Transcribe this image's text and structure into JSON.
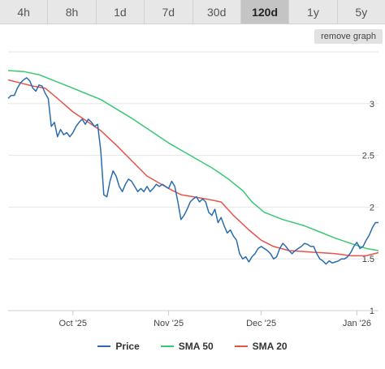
{
  "tabs": [
    {
      "label": "4h",
      "active": false
    },
    {
      "label": "8h",
      "active": false
    },
    {
      "label": "1d",
      "active": false
    },
    {
      "label": "7d",
      "active": false
    },
    {
      "label": "30d",
      "active": false
    },
    {
      "label": "120d",
      "active": true
    },
    {
      "label": "1y",
      "active": false
    },
    {
      "label": "5y",
      "active": false
    }
  ],
  "remove_graph_label": "remove graph",
  "chart_data": {
    "type": "line",
    "title": "",
    "xlabel": "",
    "ylabel": "",
    "x_range": [
      "2025-09-10",
      "2026-01-08"
    ],
    "x_ticks": [
      {
        "date": "2025-10-01",
        "label": "Oct '25"
      },
      {
        "date": "2025-11-01",
        "label": "Nov '25"
      },
      {
        "date": "2025-12-01",
        "label": "Dec '25"
      },
      {
        "date": "2026-01-01",
        "label": "Jan '26"
      }
    ],
    "ylim": [
      1,
      3.5
    ],
    "y_ticks": [
      1,
      1.5,
      2,
      2.5,
      3
    ],
    "y_tick_labels": [
      "1",
      "1.5",
      "2",
      "2.5",
      "3"
    ],
    "grid": "horizontal",
    "legend": "bottom",
    "series": [
      {
        "name": "Price",
        "color": "#2b6cb0",
        "points": [
          [
            "2025-09-10",
            3.05
          ],
          [
            "2025-09-11",
            3.08
          ],
          [
            "2025-09-12",
            3.08
          ],
          [
            "2025-09-13",
            3.15
          ],
          [
            "2025-09-14",
            3.2
          ],
          [
            "2025-09-15",
            3.23
          ],
          [
            "2025-09-16",
            3.25
          ],
          [
            "2025-09-17",
            3.22
          ],
          [
            "2025-09-18",
            3.15
          ],
          [
            "2025-09-19",
            3.12
          ],
          [
            "2025-09-20",
            3.18
          ],
          [
            "2025-09-21",
            3.17
          ],
          [
            "2025-09-22",
            3.1
          ],
          [
            "2025-09-23",
            3.05
          ],
          [
            "2025-09-24",
            2.78
          ],
          [
            "2025-09-25",
            2.82
          ],
          [
            "2025-09-26",
            2.68
          ],
          [
            "2025-09-27",
            2.75
          ],
          [
            "2025-09-28",
            2.7
          ],
          [
            "2025-09-29",
            2.72
          ],
          [
            "2025-09-30",
            2.68
          ],
          [
            "2025-10-01",
            2.72
          ],
          [
            "2025-10-02",
            2.78
          ],
          [
            "2025-10-03",
            2.82
          ],
          [
            "2025-10-04",
            2.85
          ],
          [
            "2025-10-05",
            2.8
          ],
          [
            "2025-10-06",
            2.85
          ],
          [
            "2025-10-07",
            2.82
          ],
          [
            "2025-10-08",
            2.78
          ],
          [
            "2025-10-09",
            2.8
          ],
          [
            "2025-10-10",
            2.55
          ],
          [
            "2025-10-11",
            2.12
          ],
          [
            "2025-10-12",
            2.1
          ],
          [
            "2025-10-13",
            2.25
          ],
          [
            "2025-10-14",
            2.35
          ],
          [
            "2025-10-15",
            2.3
          ],
          [
            "2025-10-16",
            2.2
          ],
          [
            "2025-10-17",
            2.15
          ],
          [
            "2025-10-18",
            2.22
          ],
          [
            "2025-10-19",
            2.27
          ],
          [
            "2025-10-20",
            2.25
          ],
          [
            "2025-10-21",
            2.2
          ],
          [
            "2025-10-22",
            2.15
          ],
          [
            "2025-10-23",
            2.18
          ],
          [
            "2025-10-24",
            2.15
          ],
          [
            "2025-10-25",
            2.2
          ],
          [
            "2025-10-26",
            2.15
          ],
          [
            "2025-10-27",
            2.18
          ],
          [
            "2025-10-28",
            2.22
          ],
          [
            "2025-10-29",
            2.2
          ],
          [
            "2025-10-30",
            2.22
          ],
          [
            "2025-10-31",
            2.2
          ],
          [
            "2025-11-01",
            2.18
          ],
          [
            "2025-11-02",
            2.25
          ],
          [
            "2025-11-03",
            2.2
          ],
          [
            "2025-11-04",
            2.05
          ],
          [
            "2025-11-05",
            1.88
          ],
          [
            "2025-11-06",
            1.92
          ],
          [
            "2025-11-07",
            1.98
          ],
          [
            "2025-11-08",
            2.05
          ],
          [
            "2025-11-09",
            2.08
          ],
          [
            "2025-11-10",
            2.1
          ],
          [
            "2025-11-11",
            2.05
          ],
          [
            "2025-11-12",
            2.08
          ],
          [
            "2025-11-13",
            2.05
          ],
          [
            "2025-11-14",
            1.95
          ],
          [
            "2025-11-15",
            1.92
          ],
          [
            "2025-11-16",
            1.98
          ],
          [
            "2025-11-17",
            1.85
          ],
          [
            "2025-11-18",
            1.9
          ],
          [
            "2025-11-19",
            1.82
          ],
          [
            "2025-11-20",
            1.75
          ],
          [
            "2025-11-21",
            1.78
          ],
          [
            "2025-11-22",
            1.72
          ],
          [
            "2025-11-23",
            1.68
          ],
          [
            "2025-11-24",
            1.55
          ],
          [
            "2025-11-25",
            1.5
          ],
          [
            "2025-11-26",
            1.52
          ],
          [
            "2025-11-27",
            1.47
          ],
          [
            "2025-11-28",
            1.52
          ],
          [
            "2025-11-29",
            1.55
          ],
          [
            "2025-11-30",
            1.6
          ],
          [
            "2025-12-01",
            1.62
          ],
          [
            "2025-12-02",
            1.6
          ],
          [
            "2025-12-03",
            1.58
          ],
          [
            "2025-12-04",
            1.55
          ],
          [
            "2025-12-05",
            1.5
          ],
          [
            "2025-12-06",
            1.52
          ],
          [
            "2025-12-07",
            1.6
          ],
          [
            "2025-12-08",
            1.65
          ],
          [
            "2025-12-09",
            1.62
          ],
          [
            "2025-12-10",
            1.58
          ],
          [
            "2025-12-11",
            1.55
          ],
          [
            "2025-12-12",
            1.58
          ],
          [
            "2025-12-13",
            1.6
          ],
          [
            "2025-12-14",
            1.62
          ],
          [
            "2025-12-15",
            1.65
          ],
          [
            "2025-12-16",
            1.64
          ],
          [
            "2025-12-17",
            1.62
          ],
          [
            "2025-12-18",
            1.62
          ],
          [
            "2025-12-19",
            1.55
          ],
          [
            "2025-12-20",
            1.5
          ],
          [
            "2025-12-21",
            1.48
          ],
          [
            "2025-12-22",
            1.45
          ],
          [
            "2025-12-23",
            1.48
          ],
          [
            "2025-12-24",
            1.46
          ],
          [
            "2025-12-25",
            1.47
          ],
          [
            "2025-12-26",
            1.48
          ],
          [
            "2025-12-27",
            1.5
          ],
          [
            "2025-12-28",
            1.5
          ],
          [
            "2025-12-29",
            1.52
          ],
          [
            "2025-12-30",
            1.56
          ],
          [
            "2025-12-31",
            1.62
          ],
          [
            "2026-01-01",
            1.66
          ],
          [
            "2026-01-02",
            1.6
          ],
          [
            "2026-01-03",
            1.62
          ],
          [
            "2026-01-04",
            1.68
          ],
          [
            "2026-01-05",
            1.73
          ],
          [
            "2026-01-06",
            1.8
          ],
          [
            "2026-01-07",
            1.85
          ],
          [
            "2026-01-08",
            1.85
          ]
        ]
      },
      {
        "name": "SMA 50",
        "color": "#3ac873",
        "points": [
          [
            "2025-09-10",
            3.32
          ],
          [
            "2025-09-15",
            3.31
          ],
          [
            "2025-09-20",
            3.28
          ],
          [
            "2025-09-25",
            3.22
          ],
          [
            "2025-10-01",
            3.15
          ],
          [
            "2025-10-05",
            3.1
          ],
          [
            "2025-10-10",
            3.04
          ],
          [
            "2025-10-15",
            2.95
          ],
          [
            "2025-10-20",
            2.86
          ],
          [
            "2025-10-25",
            2.76
          ],
          [
            "2025-11-01",
            2.62
          ],
          [
            "2025-11-08",
            2.5
          ],
          [
            "2025-11-15",
            2.38
          ],
          [
            "2025-11-20",
            2.28
          ],
          [
            "2025-11-25",
            2.16
          ],
          [
            "2025-11-28",
            2.05
          ],
          [
            "2025-12-02",
            1.95
          ],
          [
            "2025-12-08",
            1.88
          ],
          [
            "2025-12-15",
            1.82
          ],
          [
            "2025-12-20",
            1.76
          ],
          [
            "2025-12-25",
            1.7
          ],
          [
            "2025-12-30",
            1.65
          ],
          [
            "2026-01-04",
            1.6
          ],
          [
            "2026-01-08",
            1.58
          ]
        ]
      },
      {
        "name": "SMA 20",
        "color": "#e8534a",
        "points": [
          [
            "2025-09-10",
            3.23
          ],
          [
            "2025-09-14",
            3.2
          ],
          [
            "2025-09-18",
            3.17
          ],
          [
            "2025-09-22",
            3.15
          ],
          [
            "2025-09-26",
            3.05
          ],
          [
            "2025-10-01",
            2.92
          ],
          [
            "2025-10-06",
            2.82
          ],
          [
            "2025-10-10",
            2.74
          ],
          [
            "2025-10-15",
            2.6
          ],
          [
            "2025-10-20",
            2.45
          ],
          [
            "2025-10-25",
            2.3
          ],
          [
            "2025-11-01",
            2.18
          ],
          [
            "2025-11-05",
            2.12
          ],
          [
            "2025-11-09",
            2.1
          ],
          [
            "2025-11-13",
            2.08
          ],
          [
            "2025-11-18",
            2.05
          ],
          [
            "2025-11-22",
            1.92
          ],
          [
            "2025-11-27",
            1.78
          ],
          [
            "2025-12-01",
            1.68
          ],
          [
            "2025-12-05",
            1.62
          ],
          [
            "2025-12-10",
            1.58
          ],
          [
            "2025-12-15",
            1.57
          ],
          [
            "2025-12-20",
            1.56
          ],
          [
            "2025-12-25",
            1.55
          ],
          [
            "2025-12-30",
            1.53
          ],
          [
            "2026-01-04",
            1.53
          ],
          [
            "2026-01-08",
            1.56
          ]
        ]
      }
    ]
  }
}
